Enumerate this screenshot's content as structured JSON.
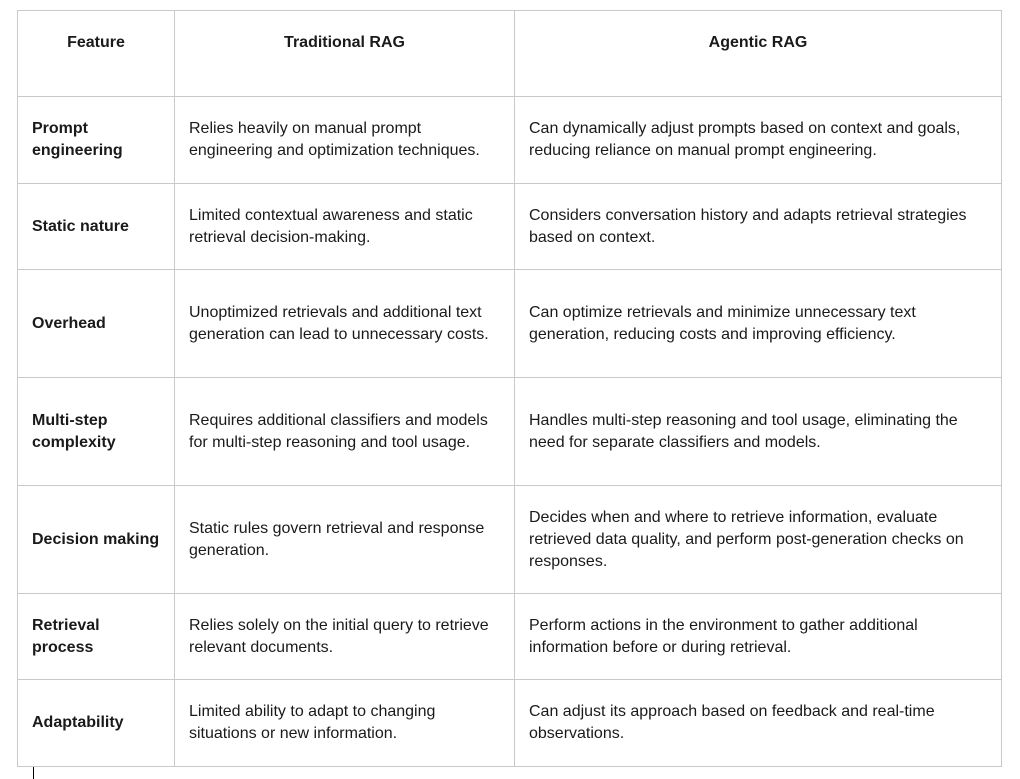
{
  "table": {
    "headers": {
      "feature": "Feature",
      "traditional": "Traditional RAG",
      "agentic": "Agentic RAG"
    },
    "rows": [
      {
        "feature": "Prompt engineering",
        "traditional": "Relies heavily on manual prompt engineering and optimization techniques.",
        "agentic": "Can dynamically adjust prompts based on context and goals, reducing reliance on manual prompt engineering."
      },
      {
        "feature": "Static nature",
        "traditional": "Limited contextual awareness and static retrieval decision-making.",
        "agentic": "Considers conversation history and adapts retrieval strategies based on context."
      },
      {
        "feature": "Overhead",
        "traditional": "Unoptimized retrievals and additional text generation can lead to unnecessary costs.",
        "agentic": "Can optimize retrievals and minimize unnecessary text generation, reducing costs and improving efficiency."
      },
      {
        "feature": "Multi-step complexity",
        "traditional": "Requires additional classifiers and models for multi-step reasoning and tool usage.",
        "agentic": "Handles multi-step reasoning and tool usage, eliminating the need for separate classifiers and models."
      },
      {
        "feature": "Decision making",
        "traditional": "Static rules govern retrieval and response generation.",
        "agentic": "Decides when and where to retrieve information, evaluate retrieved data quality, and perform post-generation checks on responses."
      },
      {
        "feature": "Retrieval process",
        "traditional": "Relies solely on the initial query to retrieve relevant documents.",
        "agentic": "Perform actions in the environment to gather additional information before or during retrieval."
      },
      {
        "feature": "Adaptability",
        "traditional": "Limited ability to adapt to changing situations or new information.",
        "agentic": "Can adjust its approach based on feedback and real-time observations."
      }
    ]
  }
}
